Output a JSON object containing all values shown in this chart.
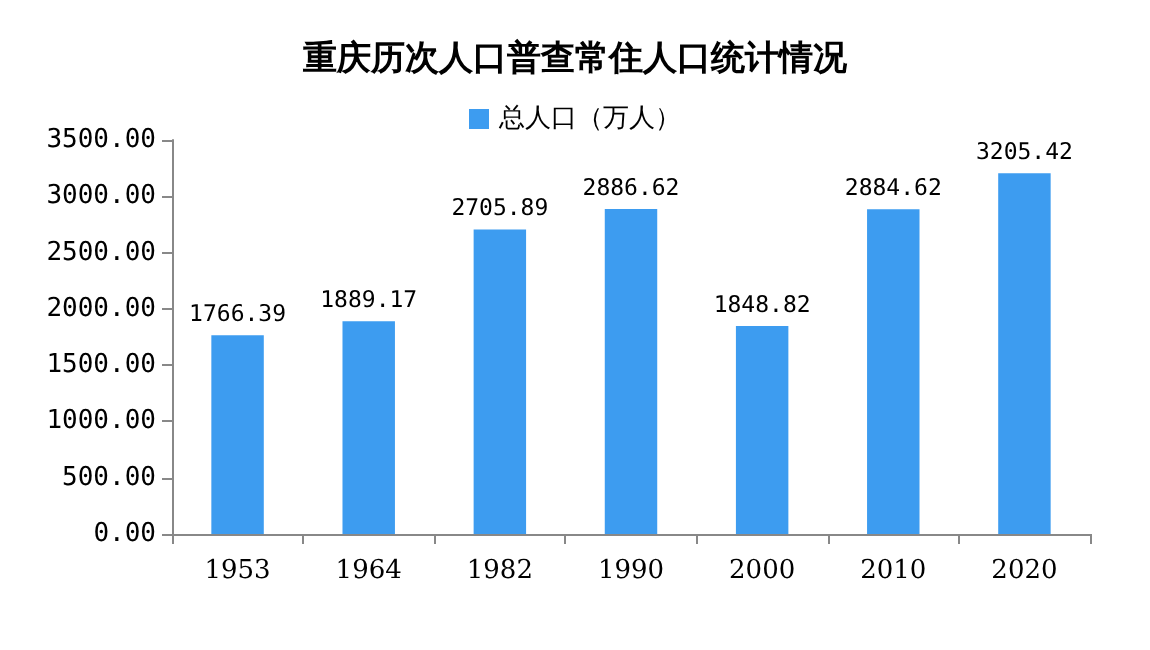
{
  "chart_data": {
    "type": "bar",
    "title": "重庆历次人口普查常住人口统计情况",
    "categories": [
      "1953",
      "1964",
      "1982",
      "1990",
      "2000",
      "2010",
      "2020"
    ],
    "series": [
      {
        "name": "总人口（万人）",
        "color": "#3d9cf0",
        "values": [
          1766.39,
          1889.17,
          2705.89,
          2886.62,
          1848.82,
          2884.62,
          3205.42
        ]
      }
    ],
    "ylim": [
      0,
      3500
    ],
    "yticks": [
      {
        "value": 0,
        "label": "0.00"
      },
      {
        "value": 500,
        "label": "500.00"
      },
      {
        "value": 1000,
        "label": "1000.00"
      },
      {
        "value": 1500,
        "label": "1500.00"
      },
      {
        "value": 2000,
        "label": "2000.00"
      },
      {
        "value": 2500,
        "label": "2500.00"
      },
      {
        "value": 3000,
        "label": "3000.00"
      },
      {
        "value": 3500,
        "label": "3500.00"
      }
    ],
    "grid": false,
    "legend": "top",
    "data_labels": true
  }
}
